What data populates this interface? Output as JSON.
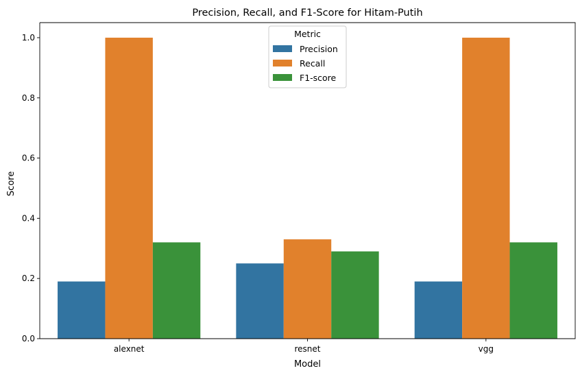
{
  "chart_data": {
    "type": "bar",
    "title": "Precision, Recall, and F1-Score for Hitam-Putih",
    "xlabel": "Model",
    "ylabel": "Score",
    "categories": [
      "alexnet",
      "resnet",
      "vgg"
    ],
    "series": [
      {
        "name": "Precision",
        "color": "#3274a1",
        "values": [
          0.19,
          0.25,
          0.19
        ]
      },
      {
        "name": "Recall",
        "color": "#e1812c",
        "values": [
          1.0,
          0.33,
          1.0
        ]
      },
      {
        "name": "F1-score",
        "color": "#3a923a",
        "values": [
          0.32,
          0.29,
          0.32
        ]
      }
    ],
    "ylim": [
      0,
      1.05
    ],
    "yticks": [
      "0.0",
      "0.2",
      "0.4",
      "0.6",
      "0.8",
      "1.0"
    ],
    "legend": {
      "title": "Metric",
      "placement": "top-center"
    },
    "grid": false
  }
}
